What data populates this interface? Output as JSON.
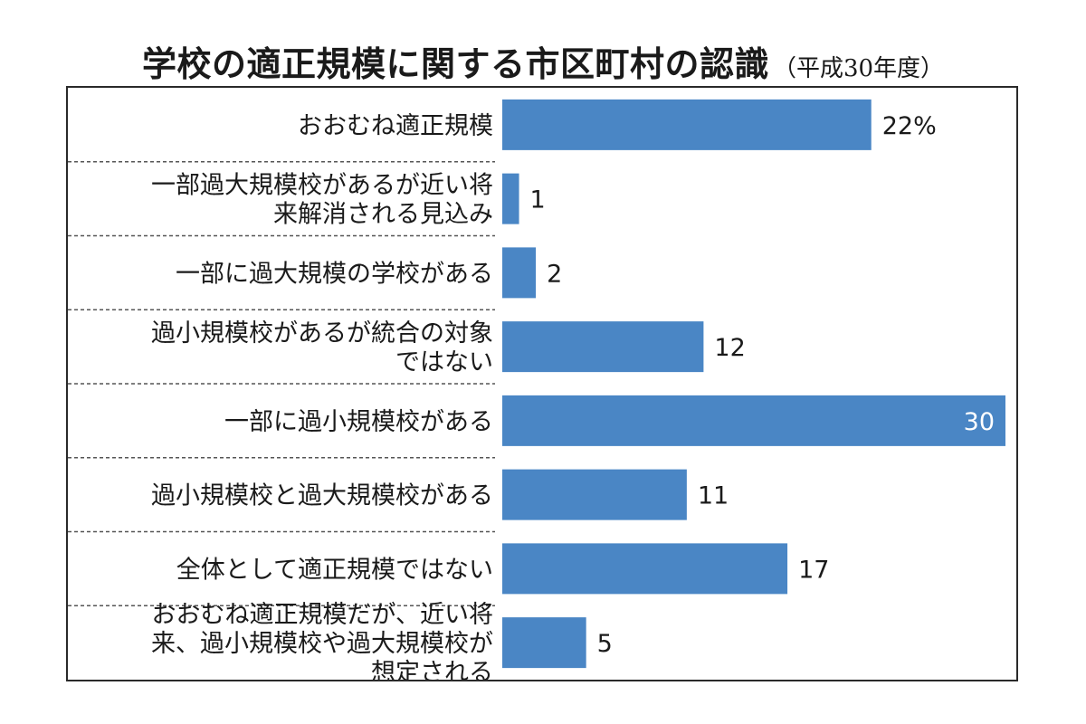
{
  "chart_data": {
    "type": "bar",
    "orientation": "horizontal",
    "title": "学校の適正規模に関する市区町村の認識",
    "subtitle": "（平成30年度）",
    "unit": "%",
    "categories": [
      "おおむね適正規模",
      "一部過大規模校があるが近い将来解消される見込み",
      "一部に過大規模の学校がある",
      "過小規模校があるが統合の対象ではない",
      "一部に過小規模校がある",
      "過小規模校と過大規模校がある",
      "全体として適正規模ではない",
      "おおむね適正規模だが、近い将来、過小規模校や過大規模校が想定される"
    ],
    "category_lines": [
      [
        "おおむね適正規模"
      ],
      [
        "一部過大規模校があるが近い将",
        "来解消される見込み"
      ],
      [
        "一部に過大規模の学校がある"
      ],
      [
        "過小規模校があるが統合の対象",
        "ではない"
      ],
      [
        "一部に過小規模校がある"
      ],
      [
        "過小規模校と過大規模校がある"
      ],
      [
        "全体として適正規模ではない"
      ],
      [
        "おおむね適正規模だが、近い将",
        "来、過小規模校や過大規模校が",
        "想定される"
      ]
    ],
    "values": [
      22,
      1,
      2,
      12,
      30,
      11,
      17,
      5
    ],
    "value_labels": [
      "22%",
      "1",
      "2",
      "12",
      "30",
      "11",
      "17",
      "5"
    ],
    "xlim": [
      0,
      30
    ],
    "bar_color": "#4a86c5",
    "grid": false,
    "legend": "none"
  }
}
